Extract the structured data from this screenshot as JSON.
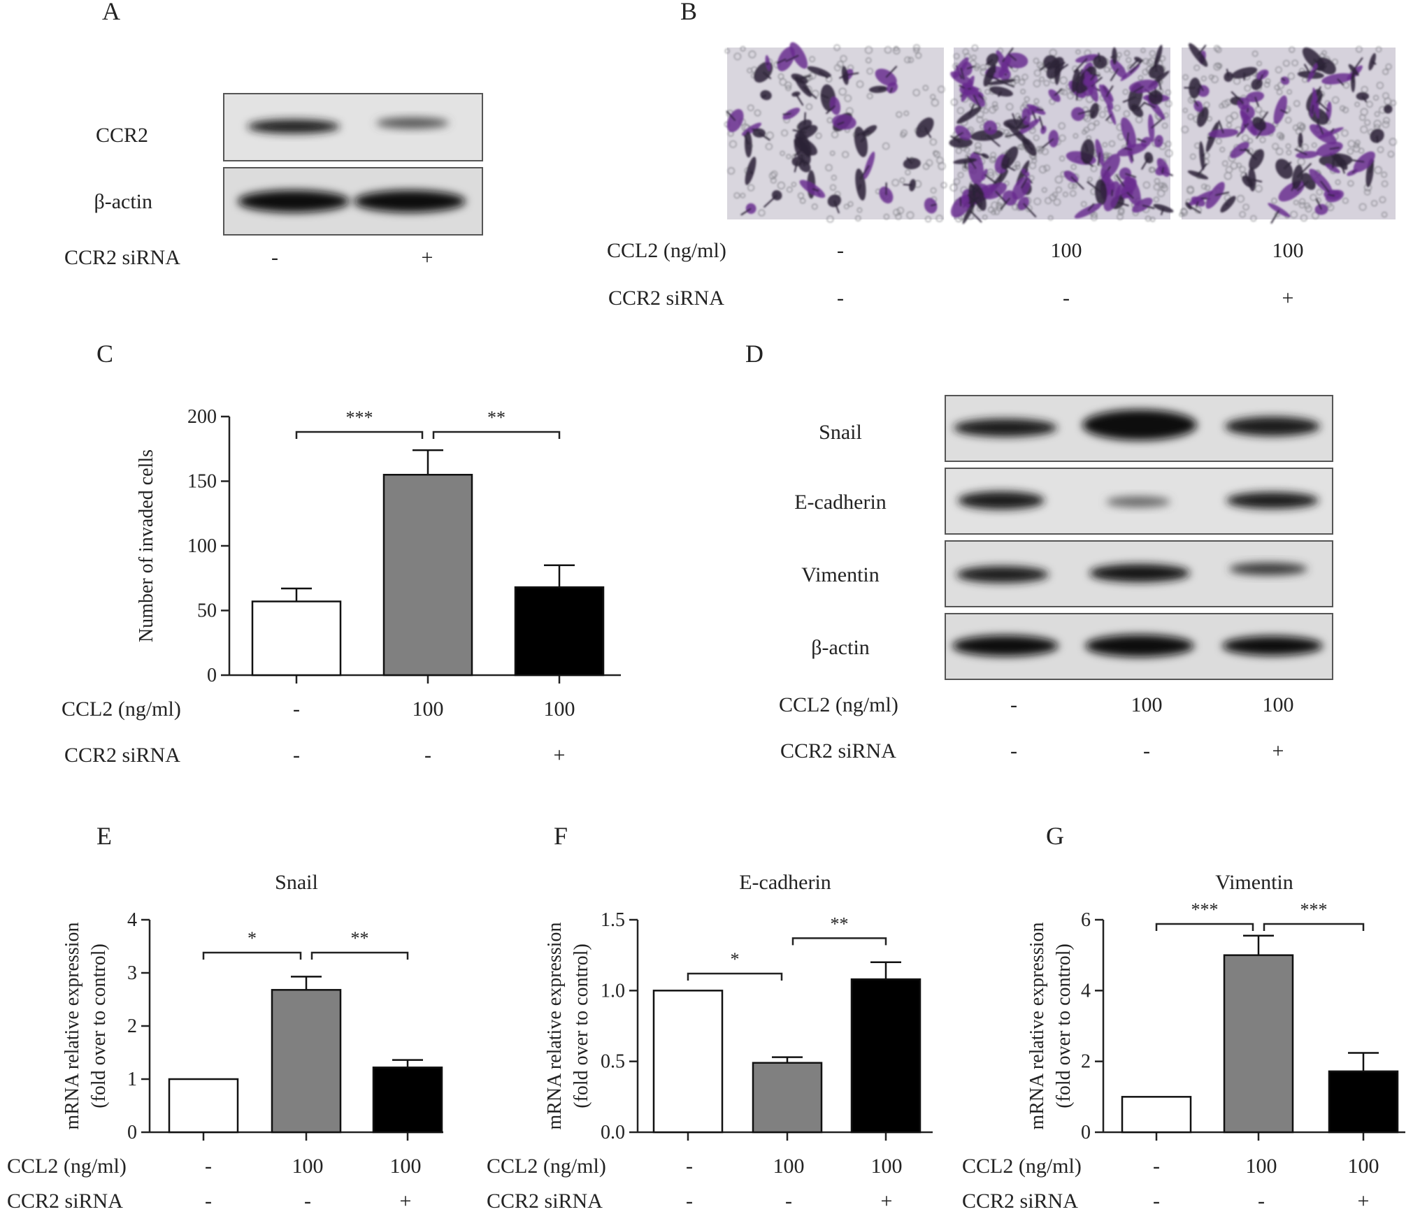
{
  "panels": {
    "A": {
      "letter": "A",
      "rows": [
        "CCR2",
        "β-actin"
      ],
      "condition_label": "CCR2 siRNA",
      "conditions": [
        "-",
        "+"
      ]
    },
    "B": {
      "letter": "B",
      "row_labels": [
        "CCL2 (ng/ml)",
        "CCR2 siRNA"
      ],
      "ccl2": [
        "-",
        "100",
        "100"
      ],
      "sirna": [
        "-",
        "-",
        "+"
      ]
    },
    "C": {
      "letter": "C",
      "row_labels": [
        "CCL2 (ng/ml)",
        "CCR2 siRNA"
      ],
      "ccl2": [
        "-",
        "100",
        "100"
      ],
      "sirna": [
        "-",
        "-",
        "+"
      ]
    },
    "D": {
      "letter": "D",
      "rows": [
        "Snail",
        "E-cadherin",
        "Vimentin",
        "β-actin"
      ],
      "row_labels": [
        "CCL2 (ng/ml)",
        "CCR2 siRNA"
      ],
      "ccl2": [
        "-",
        "100",
        "100"
      ],
      "sirna": [
        "-",
        "-",
        "+"
      ]
    },
    "E": {
      "letter": "E",
      "row_labels": [
        "CCL2 (ng/ml)",
        "CCR2 siRNA"
      ],
      "ccl2": [
        "-",
        "100",
        "100"
      ],
      "sirna": [
        "-",
        "-",
        "+"
      ]
    },
    "F": {
      "letter": "F",
      "row_labels": [
        "CCL2 (ng/ml)",
        "CCR2 siRNA"
      ],
      "ccl2": [
        "-",
        "100",
        "100"
      ],
      "sirna": [
        "-",
        "-",
        "+"
      ]
    },
    "G": {
      "letter": "G",
      "row_labels": [
        "CCL2 (ng/ml)",
        "CCR2 siRNA"
      ],
      "ccl2": [
        "-",
        "100",
        "100"
      ],
      "sirna": [
        "-",
        "-",
        "+"
      ]
    }
  },
  "bar_colors": [
    "#ffffff",
    "#808080",
    "#000000"
  ],
  "chart_data": [
    {
      "panel": "C",
      "type": "bar",
      "title": "",
      "ylabel": "Number of invaded cells",
      "ylim": [
        0,
        200
      ],
      "yticks": [
        "0",
        "50",
        "100",
        "150",
        "200"
      ],
      "values": [
        57,
        155,
        68
      ],
      "errors": [
        10,
        19,
        17
      ],
      "significance": [
        {
          "from": 0,
          "to": 1,
          "label": "***"
        },
        {
          "from": 1,
          "to": 2,
          "label": "**"
        }
      ]
    },
    {
      "panel": "E",
      "type": "bar",
      "title": "Snail",
      "ylabel": [
        "mRNA relative expression",
        "(fold over to control)"
      ],
      "ylim": [
        0,
        4
      ],
      "yticks": [
        "0",
        "1",
        "2",
        "3",
        "4"
      ],
      "values": [
        1.0,
        2.68,
        1.22
      ],
      "errors": [
        0,
        0.25,
        0.14
      ],
      "significance": [
        {
          "from": 0,
          "to": 1,
          "label": "*"
        },
        {
          "from": 1,
          "to": 2,
          "label": "**"
        }
      ]
    },
    {
      "panel": "F",
      "type": "bar",
      "title": "E-cadherin",
      "ylabel": [
        "mRNA relative expression",
        "(fold over to control)"
      ],
      "ylim": [
        0,
        1.5
      ],
      "yticks": [
        "0.0",
        "0.5",
        "1.0",
        "1.5"
      ],
      "values": [
        1.0,
        0.49,
        1.08
      ],
      "errors": [
        0,
        0.04,
        0.12
      ],
      "significance": [
        {
          "from": 0,
          "to": 1,
          "label": "*"
        },
        {
          "from": 1,
          "to": 2,
          "label": "**"
        }
      ]
    },
    {
      "panel": "G",
      "type": "bar",
      "title": "Vimentin",
      "ylabel": [
        "mRNA relative expression",
        "(fold over to control)"
      ],
      "ylim": [
        0,
        6
      ],
      "yticks": [
        "0",
        "2",
        "4",
        "6"
      ],
      "values": [
        1.0,
        5.0,
        1.72
      ],
      "errors": [
        0,
        0.55,
        0.52
      ],
      "significance": [
        {
          "from": 0,
          "to": 1,
          "label": "***"
        },
        {
          "from": 1,
          "to": 2,
          "label": "***"
        }
      ]
    }
  ]
}
